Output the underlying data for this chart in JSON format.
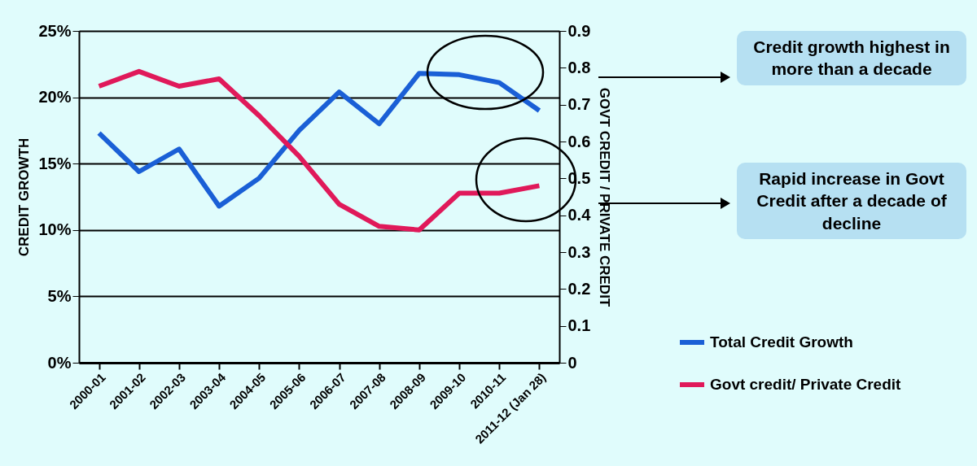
{
  "chart_data": {
    "type": "line",
    "categories": [
      "2000-01",
      "2001-02",
      "2002-03",
      "2003-04",
      "2004-05",
      "2005-06",
      "2006-07",
      "2007-08",
      "2008-09",
      "2009-10",
      "2010-11",
      "2011-12 (Jan 28)"
    ],
    "series": [
      {
        "name": "Total Credit Growth",
        "color": "#1a5fd6",
        "values": [
          17.3,
          14.4,
          16.1,
          11.8,
          13.9,
          17.5,
          20.4,
          18.0,
          21.8,
          21.7,
          21.1,
          19.0
        ]
      },
      {
        "name": "Govt credit/ Private Credit",
        "color": "#e0195a",
        "axis": "y2",
        "values": [
          0.75,
          0.79,
          0.75,
          0.77,
          0.67,
          0.56,
          0.43,
          0.37,
          0.36,
          0.46,
          0.46,
          0.48
        ]
      }
    ],
    "ylabel": "CREDIT GROWTH",
    "y2label": "GOVT CREDIT / PRIVATE CREDIT",
    "ylim": [
      0,
      25
    ],
    "yticks": [
      {
        "value": 0,
        "label": "0%"
      },
      {
        "value": 5,
        "label": "5%"
      },
      {
        "value": 10,
        "label": "10%"
      },
      {
        "value": 15,
        "label": "15%"
      },
      {
        "value": 20,
        "label": "20%"
      },
      {
        "value": 25,
        "label": "25%"
      }
    ],
    "y2lim": [
      0,
      0.9
    ],
    "y2ticks": [
      0,
      0.1,
      0.2,
      0.3,
      0.4,
      0.5,
      0.6,
      0.7,
      0.8,
      0.9
    ],
    "grid": "y",
    "legend": "bottom right",
    "annotations": [
      "Credit growth highest in more than a decade",
      "Rapid increase in Govt Credit after a decade of decline"
    ]
  }
}
